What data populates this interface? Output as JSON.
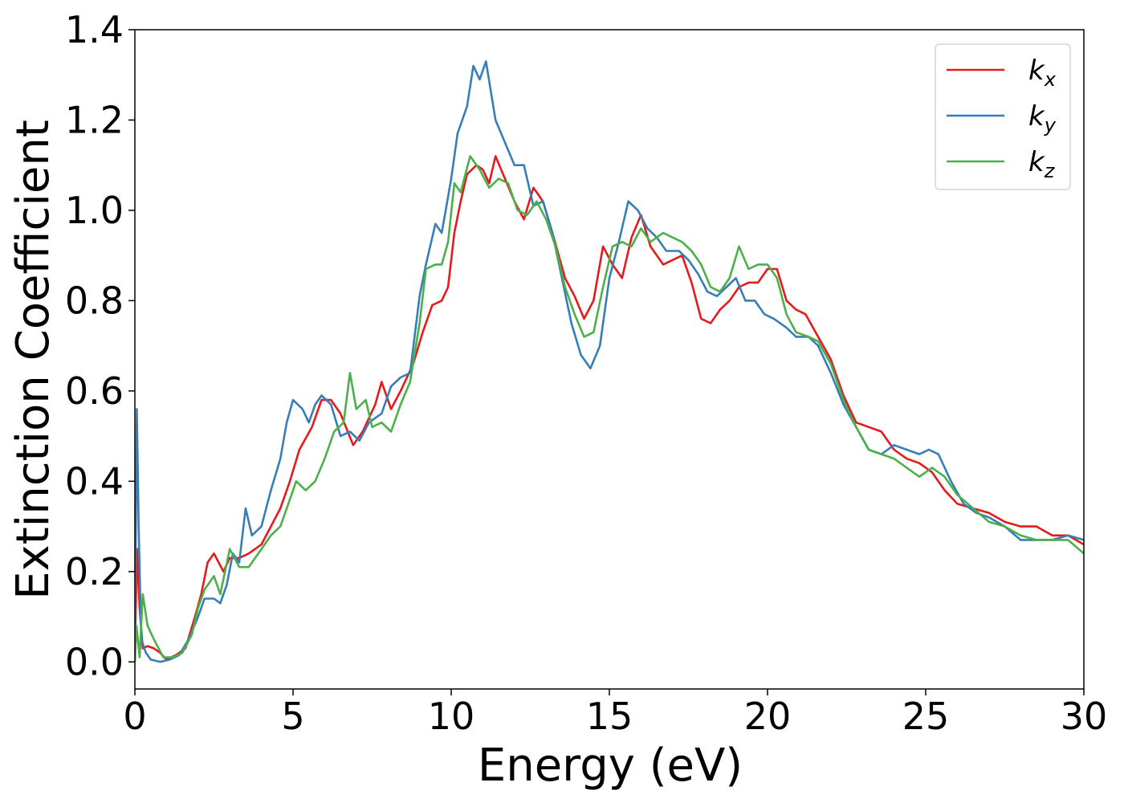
{
  "chart_data": {
    "type": "line",
    "xlabel": "Energy (eV)",
    "ylabel": "Extinction Coefficient",
    "xlim": [
      0,
      30
    ],
    "ylim": [
      -0.06,
      1.4
    ],
    "xticks": [
      0,
      5,
      10,
      15,
      20,
      25,
      30
    ],
    "xtick_labels": [
      "0",
      "5",
      "10",
      "15",
      "20",
      "25",
      "30"
    ],
    "yticks": [
      0.0,
      0.2,
      0.4,
      0.6,
      0.8,
      1.0,
      1.2,
      1.4
    ],
    "ytick_labels": [
      "0.0",
      "0.2",
      "0.4",
      "0.6",
      "0.8",
      "1.0",
      "1.2",
      "1.4"
    ],
    "grid": false,
    "legend_position": "top-right",
    "series": [
      {
        "name": "k",
        "subscript": "x",
        "color": "#e41a1c",
        "points": [
          [
            0,
            0.02
          ],
          [
            0.07,
            0.25
          ],
          [
            0.15,
            0.12
          ],
          [
            0.25,
            0.03
          ],
          [
            0.4,
            0.035
          ],
          [
            0.6,
            0.03
          ],
          [
            0.8,
            0.02
          ],
          [
            1.0,
            0.005
          ],
          [
            1.3,
            0.015
          ],
          [
            1.6,
            0.03
          ],
          [
            1.9,
            0.1
          ],
          [
            2.1,
            0.15
          ],
          [
            2.3,
            0.22
          ],
          [
            2.5,
            0.24
          ],
          [
            2.8,
            0.2
          ],
          [
            3.0,
            0.23
          ],
          [
            3.3,
            0.23
          ],
          [
            3.6,
            0.24
          ],
          [
            4.0,
            0.26
          ],
          [
            4.3,
            0.3
          ],
          [
            4.6,
            0.34
          ],
          [
            4.9,
            0.4
          ],
          [
            5.2,
            0.47
          ],
          [
            5.6,
            0.52
          ],
          [
            5.9,
            0.58
          ],
          [
            6.2,
            0.58
          ],
          [
            6.5,
            0.55
          ],
          [
            6.9,
            0.48
          ],
          [
            7.2,
            0.51
          ],
          [
            7.6,
            0.57
          ],
          [
            7.8,
            0.62
          ],
          [
            8.1,
            0.56
          ],
          [
            8.4,
            0.6
          ],
          [
            8.8,
            0.66
          ],
          [
            9.1,
            0.73
          ],
          [
            9.4,
            0.79
          ],
          [
            9.7,
            0.8
          ],
          [
            9.9,
            0.83
          ],
          [
            10.1,
            0.95
          ],
          [
            10.3,
            1.02
          ],
          [
            10.5,
            1.08
          ],
          [
            10.8,
            1.1
          ],
          [
            11.0,
            1.09
          ],
          [
            11.2,
            1.06
          ],
          [
            11.4,
            1.12
          ],
          [
            11.7,
            1.07
          ],
          [
            12.0,
            1.02
          ],
          [
            12.3,
            0.98
          ],
          [
            12.6,
            1.05
          ],
          [
            12.9,
            1.02
          ],
          [
            13.2,
            0.95
          ],
          [
            13.6,
            0.85
          ],
          [
            13.9,
            0.81
          ],
          [
            14.2,
            0.76
          ],
          [
            14.5,
            0.8
          ],
          [
            14.8,
            0.92
          ],
          [
            15.1,
            0.88
          ],
          [
            15.4,
            0.85
          ],
          [
            15.7,
            0.94
          ],
          [
            16.0,
            0.99
          ],
          [
            16.3,
            0.92
          ],
          [
            16.7,
            0.88
          ],
          [
            17.0,
            0.89
          ],
          [
            17.3,
            0.9
          ],
          [
            17.6,
            0.84
          ],
          [
            17.9,
            0.76
          ],
          [
            18.2,
            0.75
          ],
          [
            18.5,
            0.78
          ],
          [
            18.8,
            0.8
          ],
          [
            19.1,
            0.83
          ],
          [
            19.4,
            0.84
          ],
          [
            19.7,
            0.84
          ],
          [
            20.0,
            0.87
          ],
          [
            20.3,
            0.87
          ],
          [
            20.6,
            0.8
          ],
          [
            20.9,
            0.78
          ],
          [
            21.2,
            0.77
          ],
          [
            21.6,
            0.72
          ],
          [
            22.0,
            0.67
          ],
          [
            22.4,
            0.59
          ],
          [
            22.8,
            0.53
          ],
          [
            23.2,
            0.52
          ],
          [
            23.6,
            0.51
          ],
          [
            24.0,
            0.47
          ],
          [
            24.4,
            0.45
          ],
          [
            24.8,
            0.44
          ],
          [
            25.2,
            0.42
          ],
          [
            25.6,
            0.38
          ],
          [
            26.0,
            0.35
          ],
          [
            26.5,
            0.34
          ],
          [
            27.0,
            0.33
          ],
          [
            27.5,
            0.31
          ],
          [
            28.0,
            0.3
          ],
          [
            28.5,
            0.3
          ],
          [
            29.0,
            0.28
          ],
          [
            29.5,
            0.28
          ],
          [
            30.0,
            0.26
          ]
        ]
      },
      {
        "name": "k",
        "subscript": "y",
        "color": "#377eb8",
        "points": [
          [
            0,
            0.0
          ],
          [
            0.06,
            0.56
          ],
          [
            0.12,
            0.3
          ],
          [
            0.2,
            0.05
          ],
          [
            0.35,
            0.02
          ],
          [
            0.5,
            0.005
          ],
          [
            0.8,
            0.0
          ],
          [
            1.1,
            0.005
          ],
          [
            1.4,
            0.015
          ],
          [
            1.7,
            0.05
          ],
          [
            2.0,
            0.1
          ],
          [
            2.2,
            0.14
          ],
          [
            2.5,
            0.14
          ],
          [
            2.7,
            0.13
          ],
          [
            2.9,
            0.17
          ],
          [
            3.1,
            0.24
          ],
          [
            3.3,
            0.22
          ],
          [
            3.5,
            0.34
          ],
          [
            3.7,
            0.28
          ],
          [
            4.0,
            0.3
          ],
          [
            4.3,
            0.38
          ],
          [
            4.6,
            0.45
          ],
          [
            4.8,
            0.53
          ],
          [
            5.0,
            0.58
          ],
          [
            5.3,
            0.56
          ],
          [
            5.5,
            0.53
          ],
          [
            5.7,
            0.57
          ],
          [
            5.9,
            0.59
          ],
          [
            6.2,
            0.57
          ],
          [
            6.5,
            0.5
          ],
          [
            6.8,
            0.51
          ],
          [
            7.1,
            0.49
          ],
          [
            7.4,
            0.53
          ],
          [
            7.8,
            0.55
          ],
          [
            8.1,
            0.61
          ],
          [
            8.4,
            0.63
          ],
          [
            8.7,
            0.64
          ],
          [
            9.0,
            0.81
          ],
          [
            9.2,
            0.88
          ],
          [
            9.5,
            0.97
          ],
          [
            9.7,
            0.95
          ],
          [
            10.0,
            1.07
          ],
          [
            10.2,
            1.17
          ],
          [
            10.5,
            1.23
          ],
          [
            10.7,
            1.32
          ],
          [
            10.9,
            1.29
          ],
          [
            11.1,
            1.33
          ],
          [
            11.4,
            1.2
          ],
          [
            11.7,
            1.15
          ],
          [
            12.0,
            1.1
          ],
          [
            12.3,
            1.1
          ],
          [
            12.6,
            1.01
          ],
          [
            12.9,
            1.02
          ],
          [
            13.2,
            0.95
          ],
          [
            13.5,
            0.85
          ],
          [
            13.8,
            0.75
          ],
          [
            14.1,
            0.68
          ],
          [
            14.4,
            0.65
          ],
          [
            14.7,
            0.7
          ],
          [
            15.0,
            0.85
          ],
          [
            15.3,
            0.93
          ],
          [
            15.6,
            1.02
          ],
          [
            15.9,
            1.0
          ],
          [
            16.2,
            0.96
          ],
          [
            16.5,
            0.94
          ],
          [
            16.8,
            0.91
          ],
          [
            17.2,
            0.91
          ],
          [
            17.5,
            0.89
          ],
          [
            17.8,
            0.86
          ],
          [
            18.1,
            0.82
          ],
          [
            18.4,
            0.81
          ],
          [
            18.7,
            0.83
          ],
          [
            19.0,
            0.85
          ],
          [
            19.3,
            0.8
          ],
          [
            19.6,
            0.8
          ],
          [
            19.9,
            0.77
          ],
          [
            20.2,
            0.76
          ],
          [
            20.6,
            0.74
          ],
          [
            20.9,
            0.72
          ],
          [
            21.3,
            0.72
          ],
          [
            21.6,
            0.7
          ],
          [
            22.0,
            0.64
          ],
          [
            22.4,
            0.57
          ],
          [
            22.8,
            0.52
          ],
          [
            23.2,
            0.47
          ],
          [
            23.6,
            0.46
          ],
          [
            24.0,
            0.48
          ],
          [
            24.4,
            0.47
          ],
          [
            24.8,
            0.46
          ],
          [
            25.1,
            0.47
          ],
          [
            25.4,
            0.46
          ],
          [
            25.8,
            0.4
          ],
          [
            26.2,
            0.35
          ],
          [
            26.6,
            0.33
          ],
          [
            27.0,
            0.32
          ],
          [
            27.5,
            0.3
          ],
          [
            28.0,
            0.27
          ],
          [
            28.5,
            0.27
          ],
          [
            29.0,
            0.27
          ],
          [
            29.5,
            0.28
          ],
          [
            30.0,
            0.27
          ]
        ]
      },
      {
        "name": "k",
        "subscript": "z",
        "color": "#4daf4a",
        "points": [
          [
            0,
            0.0
          ],
          [
            0.05,
            0.08
          ],
          [
            0.15,
            0.01
          ],
          [
            0.25,
            0.15
          ],
          [
            0.4,
            0.08
          ],
          [
            0.6,
            0.05
          ],
          [
            0.9,
            0.01
          ],
          [
            1.2,
            0.01
          ],
          [
            1.5,
            0.02
          ],
          [
            1.8,
            0.06
          ],
          [
            2.0,
            0.12
          ],
          [
            2.2,
            0.16
          ],
          [
            2.5,
            0.19
          ],
          [
            2.7,
            0.15
          ],
          [
            3.0,
            0.25
          ],
          [
            3.3,
            0.21
          ],
          [
            3.6,
            0.21
          ],
          [
            4.0,
            0.25
          ],
          [
            4.3,
            0.28
          ],
          [
            4.6,
            0.3
          ],
          [
            4.9,
            0.36
          ],
          [
            5.1,
            0.4
          ],
          [
            5.4,
            0.38
          ],
          [
            5.7,
            0.4
          ],
          [
            6.0,
            0.45
          ],
          [
            6.3,
            0.51
          ],
          [
            6.6,
            0.53
          ],
          [
            6.8,
            0.64
          ],
          [
            7.0,
            0.56
          ],
          [
            7.3,
            0.58
          ],
          [
            7.5,
            0.52
          ],
          [
            7.8,
            0.53
          ],
          [
            8.1,
            0.51
          ],
          [
            8.4,
            0.57
          ],
          [
            8.7,
            0.62
          ],
          [
            9.0,
            0.75
          ],
          [
            9.2,
            0.87
          ],
          [
            9.5,
            0.88
          ],
          [
            9.7,
            0.88
          ],
          [
            9.9,
            0.93
          ],
          [
            10.1,
            1.06
          ],
          [
            10.3,
            1.04
          ],
          [
            10.6,
            1.12
          ],
          [
            10.9,
            1.09
          ],
          [
            11.2,
            1.05
          ],
          [
            11.5,
            1.07
          ],
          [
            11.8,
            1.06
          ],
          [
            12.1,
            1.0
          ],
          [
            12.4,
            0.99
          ],
          [
            12.7,
            1.02
          ],
          [
            13.0,
            0.98
          ],
          [
            13.3,
            0.92
          ],
          [
            13.6,
            0.83
          ],
          [
            13.9,
            0.77
          ],
          [
            14.2,
            0.72
          ],
          [
            14.5,
            0.73
          ],
          [
            14.8,
            0.83
          ],
          [
            15.1,
            0.92
          ],
          [
            15.4,
            0.93
          ],
          [
            15.7,
            0.92
          ],
          [
            16.0,
            0.96
          ],
          [
            16.3,
            0.93
          ],
          [
            16.7,
            0.95
          ],
          [
            17.0,
            0.94
          ],
          [
            17.3,
            0.93
          ],
          [
            17.6,
            0.91
          ],
          [
            17.9,
            0.88
          ],
          [
            18.2,
            0.83
          ],
          [
            18.5,
            0.82
          ],
          [
            18.8,
            0.85
          ],
          [
            19.1,
            0.92
          ],
          [
            19.4,
            0.87
          ],
          [
            19.7,
            0.88
          ],
          [
            20.0,
            0.88
          ],
          [
            20.3,
            0.85
          ],
          [
            20.6,
            0.77
          ],
          [
            20.9,
            0.73
          ],
          [
            21.3,
            0.72
          ],
          [
            21.6,
            0.71
          ],
          [
            22.0,
            0.66
          ],
          [
            22.4,
            0.58
          ],
          [
            22.8,
            0.52
          ],
          [
            23.2,
            0.47
          ],
          [
            23.6,
            0.46
          ],
          [
            24.0,
            0.45
          ],
          [
            24.4,
            0.43
          ],
          [
            24.8,
            0.41
          ],
          [
            25.2,
            0.43
          ],
          [
            25.6,
            0.41
          ],
          [
            26.0,
            0.37
          ],
          [
            26.5,
            0.34
          ],
          [
            27.0,
            0.31
          ],
          [
            27.5,
            0.3
          ],
          [
            28.0,
            0.28
          ],
          [
            28.5,
            0.27
          ],
          [
            29.0,
            0.27
          ],
          [
            29.5,
            0.27
          ],
          [
            30.0,
            0.24
          ]
        ]
      }
    ]
  }
}
